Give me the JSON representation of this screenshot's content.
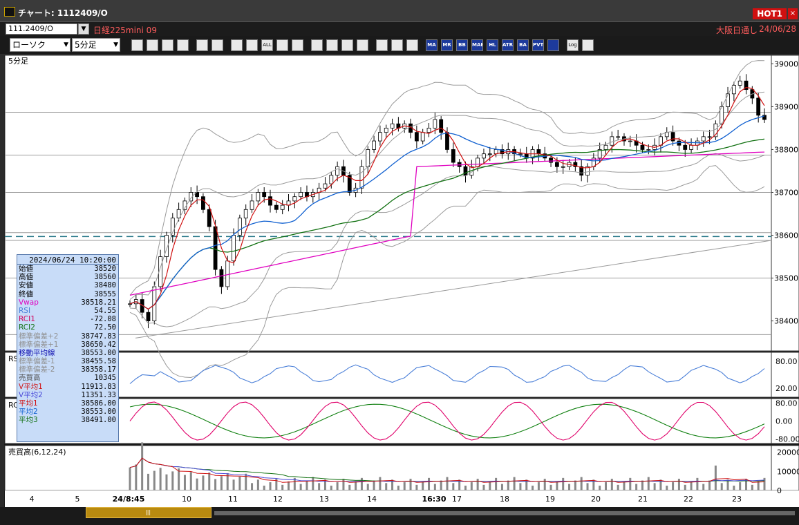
{
  "window": {
    "title": "チャート: 1112409/O",
    "hot_badge": "HOT1",
    "close": "×"
  },
  "symbol_bar": {
    "symbol": "111.2409/O",
    "name": "日経225mini 09",
    "market": "大阪日通し",
    "date": "24/06/28"
  },
  "toolbar": {
    "chart_type": "ローソク",
    "interval": "5分足",
    "buttons": [
      "search",
      "cross",
      "candle-dl",
      "bar",
      "compare",
      "lock",
      "candle",
      "candle2",
      "ALL",
      "pen",
      "line",
      "cursor",
      "arrow",
      "doc",
      "trash",
      "indicator",
      "wrench",
      "palette",
      "MA",
      "MR",
      "BB",
      "MAE",
      "HL",
      "ATR",
      "BA",
      "PVT",
      "frame",
      "log",
      "export"
    ]
  },
  "main_panel": {
    "label": "5分足",
    "y_ticks": [
      "39000",
      "38900",
      "38800",
      "38700",
      "38600",
      "38500",
      "38400"
    ],
    "x_ticks": [
      "4",
      "5",
      "24/8:45",
      "10",
      "11",
      "12",
      "13",
      "14",
      "16:30",
      "17",
      "18",
      "19",
      "20",
      "21",
      "22",
      "23"
    ]
  },
  "rsi_panel": {
    "label": "RS",
    "y_ticks": [
      "80.00",
      "20.00"
    ]
  },
  "rci_panel": {
    "label": "RC",
    "y_ticks": [
      "80.00",
      "0.00",
      "-80.00"
    ]
  },
  "volume_panel": {
    "label": "売買高(6,12,24)",
    "y_ticks": [
      "20000",
      "10000",
      "0"
    ]
  },
  "info_box": {
    "datetime": "2024/06/24  10:20:00",
    "rows": [
      {
        "k": "始値",
        "v": "38520",
        "color": "#000000"
      },
      {
        "k": "高値",
        "v": "38560",
        "color": "#000000"
      },
      {
        "k": "安値",
        "v": "38480",
        "color": "#000000"
      },
      {
        "k": "終値",
        "v": "38555",
        "color": "#000000"
      },
      {
        "k": "Vwap",
        "v": "38518.21",
        "color": "#e000c0"
      },
      {
        "k": "RSI",
        "v": "54.55",
        "color": "#4a7fd8"
      },
      {
        "k": "RCI1",
        "v": "-72.08",
        "color": "#d0005a"
      },
      {
        "k": "RCI2",
        "v": "72.50",
        "color": "#107010"
      },
      {
        "k": "標準偏差+2",
        "v": "38747.83",
        "color": "#909090"
      },
      {
        "k": "標準偏差+1",
        "v": "38650.42",
        "color": "#909090"
      },
      {
        "k": "移動平均線",
        "v": "38553.00",
        "color": "#1010b0"
      },
      {
        "k": "標準偏差-1",
        "v": "38455.58",
        "color": "#909090"
      },
      {
        "k": "標準偏差-2",
        "v": "38358.17",
        "color": "#909090"
      },
      {
        "k": "売買高",
        "v": "10345",
        "color": "#555555"
      },
      {
        "k": "V平均1",
        "v": "11913.83",
        "color": "#d01010"
      },
      {
        "k": "V平均2",
        "v": "11351.33",
        "color": "#4a4ad8"
      },
      {
        "k": "平均1",
        "v": "38586.00",
        "color": "#d01010"
      },
      {
        "k": "平均2",
        "v": "38553.00",
        "color": "#1060d0"
      },
      {
        "k": "平均3",
        "v": "38491.00",
        "color": "#107010"
      }
    ]
  },
  "colors": {
    "ma1": "#d01010",
    "ma2": "#1060d0",
    "ma3": "#107010",
    "vwap": "#e000c0",
    "bb": "#9a9a9a",
    "rsi": "#4a7fd8",
    "rci1": "#e0006a",
    "rci2": "#108010"
  },
  "chart_data": {
    "type": "candlestick",
    "price_ylim": [
      38330,
      39020
    ],
    "candles_close_series": [
      38440,
      38450,
      38420,
      38400,
      38480,
      38550,
      38600,
      38640,
      38660,
      38680,
      38700,
      38690,
      38660,
      38620,
      38520,
      38480,
      38540,
      38600,
      38640,
      38660,
      38680,
      38700,
      38690,
      38670,
      38660,
      38670,
      38680,
      38690,
      38700,
      38690,
      38700,
      38710,
      38720,
      38740,
      38760,
      38740,
      38700,
      38710,
      38760,
      38800,
      38820,
      38840,
      38850,
      38860,
      38850,
      38860,
      38840,
      38820,
      38840,
      38850,
      38870,
      38840,
      38800,
      38770,
      38760,
      38740,
      38760,
      38780,
      38790,
      38790,
      38800,
      38790,
      38800,
      38790,
      38790,
      38780,
      38800,
      38790,
      38780,
      38770,
      38760,
      38760,
      38770,
      38760,
      38740,
      38760,
      38780,
      38800,
      38810,
      38830,
      38830,
      38820,
      38820,
      38810,
      38800,
      38800,
      38810,
      38830,
      38840,
      38820,
      38810,
      38800,
      38810,
      38820,
      38830,
      38830,
      38860,
      38900,
      38930,
      38950,
      38960,
      38940,
      38920,
      38880,
      38870
    ],
    "horizontal_lines": [
      38887,
      38787,
      38700,
      38606,
      38588,
      38500,
      38368
    ],
    "dashed_line": 38597,
    "trendline": {
      "from": 38360,
      "to": 38588
    },
    "rsi_range": [
      0,
      100
    ],
    "rci_range": [
      -100,
      100
    ],
    "volume_range": [
      0,
      22000
    ]
  }
}
